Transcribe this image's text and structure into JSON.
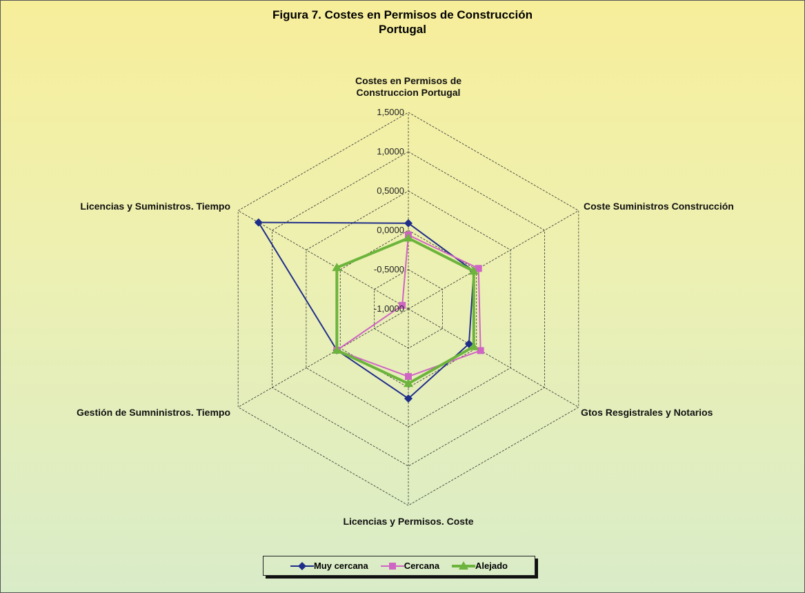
{
  "chart_data": {
    "type": "radar",
    "title": "Figura 7. Costes en Permisos de Construcción\nPortugal",
    "categories": [
      "Costes en Permisos de\nConstruccion Portugal",
      "Coste Suministros Construcción",
      "Gtos Resgistrales y Notarios",
      "Licencias y Permisos. Coste",
      "Gestión de Sumninistros. Tiempo",
      "Licencias y Suministros. Tiempo"
    ],
    "series": [
      {
        "name": "Muy cercana",
        "color": "#1f2d8a",
        "marker": "diamond",
        "values": [
          0.09,
          -0.04,
          -0.11,
          0.14,
          0.05,
          1.2
        ]
      },
      {
        "name": "Cercana",
        "color": "#d064c4",
        "marker": "square",
        "values": [
          -0.06,
          0.03,
          0.06,
          -0.14,
          0.05,
          -0.91
        ]
      },
      {
        "name": "Alejado",
        "color": "#6cb43c",
        "marker": "triangle",
        "values": [
          -0.1,
          -0.04,
          -0.04,
          -0.05,
          0.05,
          0.05
        ]
      }
    ],
    "ylim": [
      -1,
      1.5
    ],
    "yticks": [
      {
        "value": 1.5,
        "label": "1,5000"
      },
      {
        "value": 1.0,
        "label": "1,0000"
      },
      {
        "value": 0.5,
        "label": "0,5000"
      },
      {
        "value": 0,
        "label": "0,0000"
      },
      {
        "value": -0.5,
        "label": "-0,5000"
      },
      {
        "value": -1.0,
        "label": "-1,0000"
      }
    ],
    "grid": true,
    "legend": "bottom"
  }
}
